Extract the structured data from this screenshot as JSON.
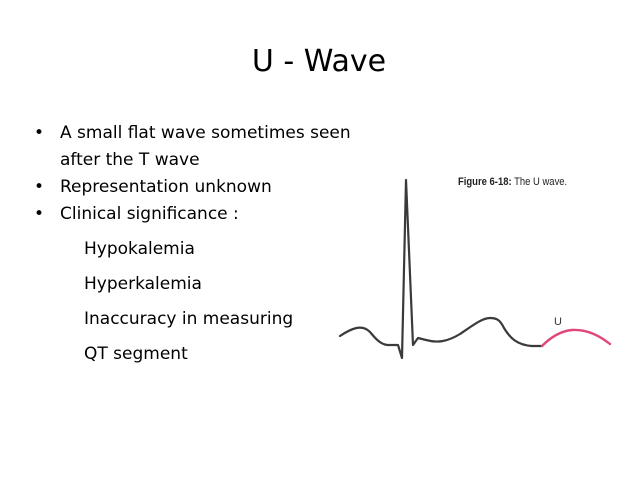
{
  "slide": {
    "title": "U - Wave",
    "bullets": [
      {
        "symbol": "•",
        "text": "A small flat wave sometimes seen after the T wave"
      },
      {
        "symbol": "•",
        "text": "Representation unknown"
      },
      {
        "symbol": "•",
        "text": "Clinical significance :"
      }
    ],
    "sub_items": [
      "Hypokalemia",
      "Hyperkalemia",
      "Inaccuracy in measuring",
      "QT segment"
    ]
  },
  "figure": {
    "caption_label": "Figure 6-18:",
    "caption_text": " The U wave.",
    "u_label": "U",
    "trace_color": "#3a3a3a",
    "u_wave_color": "#e0457b"
  }
}
